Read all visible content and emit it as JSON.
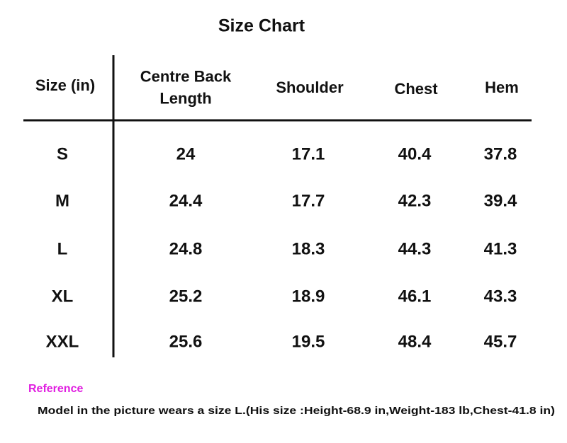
{
  "title": "Size Chart",
  "table": {
    "header": [
      [
        "Size (in)"
      ],
      [
        "Centre Back",
        "Length"
      ],
      [
        "Shoulder"
      ],
      [
        "Chest"
      ],
      [
        "Hem"
      ]
    ],
    "rows": [
      [
        "S",
        "24",
        "17.1",
        "40.4",
        "37.8"
      ],
      [
        "M",
        "24.4",
        "17.7",
        "42.3",
        "39.4"
      ],
      [
        "L",
        "24.8",
        "18.3",
        "44.3",
        "41.3"
      ],
      [
        "XL",
        "25.2",
        "18.9",
        "46.1",
        "43.3"
      ],
      [
        "XXL",
        "25.6",
        "19.5",
        "48.4",
        "45.7"
      ]
    ]
  },
  "reference": {
    "label": "Reference",
    "note": "Model in the picture wears a size L.(His size :Height-68.9 in,Weight-183 lb,Chest-41.8 in)"
  }
}
